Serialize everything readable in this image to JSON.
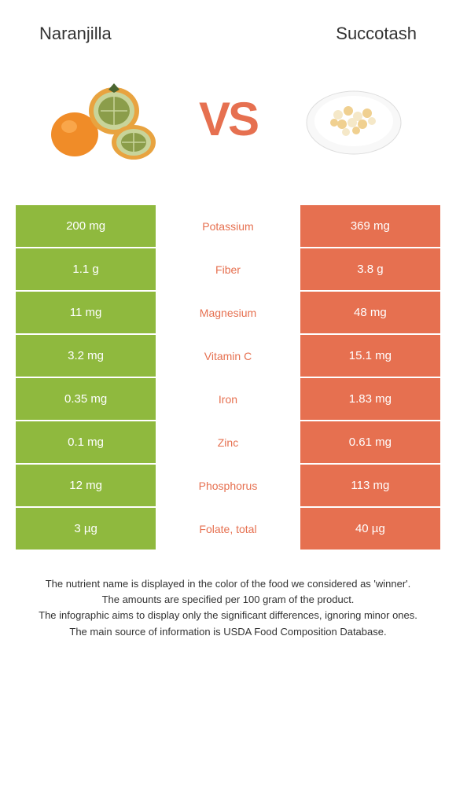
{
  "header": {
    "left_title": "Naranjilla",
    "right_title": "Succotash"
  },
  "vs": {
    "text": "VS"
  },
  "colors": {
    "left_bg": "#8fb93e",
    "right_bg": "#e67050",
    "left_text": "#8fb93e",
    "right_text": "#e67050",
    "mid_bg": "#ffffff",
    "value_text": "#ffffff"
  },
  "nutrients": [
    {
      "label": "Potassium",
      "left": "200 mg",
      "right": "369 mg",
      "winner": "right"
    },
    {
      "label": "Fiber",
      "left": "1.1 g",
      "right": "3.8 g",
      "winner": "right"
    },
    {
      "label": "Magnesium",
      "left": "11 mg",
      "right": "48 mg",
      "winner": "right"
    },
    {
      "label": "Vitamin C",
      "left": "3.2 mg",
      "right": "15.1 mg",
      "winner": "right"
    },
    {
      "label": "Iron",
      "left": "0.35 mg",
      "right": "1.83 mg",
      "winner": "right"
    },
    {
      "label": "Zinc",
      "left": "0.1 mg",
      "right": "0.61 mg",
      "winner": "right"
    },
    {
      "label": "Phosphorus",
      "left": "12 mg",
      "right": "113 mg",
      "winner": "right"
    },
    {
      "label": "Folate, total",
      "left": "3 µg",
      "right": "40 µg",
      "winner": "right"
    }
  ],
  "footnotes": {
    "line1": "The nutrient name is displayed in the color of the food we considered as 'winner'.",
    "line2": "The amounts are specified per 100 gram of the product.",
    "line3": "The infographic aims to display only the significant differences, ignoring minor ones.",
    "line4": "The main source of information is USDA Food Composition Database."
  }
}
